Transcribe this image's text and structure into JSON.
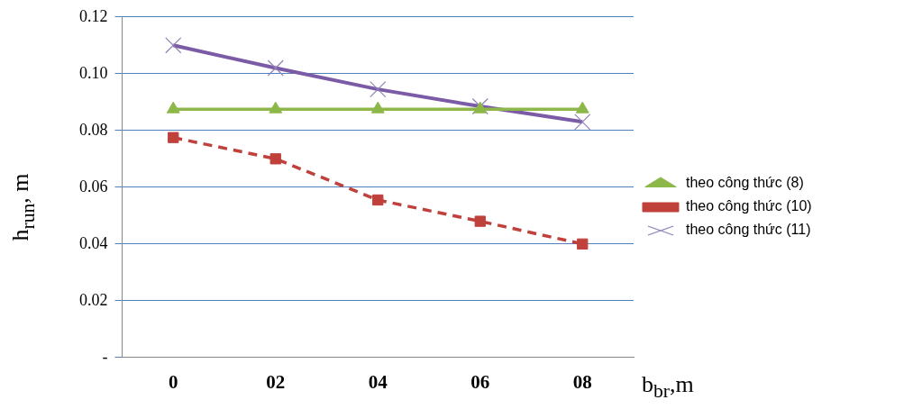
{
  "chart_data": {
    "type": "line",
    "xlabel": "b$_{br}$,m",
    "ylabel": "h$_{run}$, m",
    "categories": [
      "0",
      "02",
      "04",
      "06",
      "08"
    ],
    "series": [
      {
        "name": "theo công thức (8)",
        "color": "#8db849",
        "marker": "triangle",
        "line_style": "solid",
        "values": [
          0.0875,
          0.0875,
          0.0875,
          0.0875,
          0.0875
        ]
      },
      {
        "name": "theo công thức (10)",
        "color": "#c0403c",
        "marker": "square",
        "line_style": "dashed",
        "values": [
          0.0775,
          0.07,
          0.0555,
          0.048,
          0.04
        ]
      },
      {
        "name": "theo công thức (11)",
        "color": "#7b5ba6",
        "marker": "cross",
        "line_style": "solid",
        "values": [
          0.11,
          0.102,
          0.0945,
          0.0885,
          0.083
        ]
      }
    ],
    "ylim": [
      0,
      0.12
    ],
    "yticks": [
      {
        "value": 0,
        "label": "-"
      },
      0.02,
      0.04,
      0.06,
      0.08,
      {
        "value": 0.1,
        "label": "0.10"
      },
      0.12
    ],
    "grid": "y",
    "legend": "right"
  }
}
